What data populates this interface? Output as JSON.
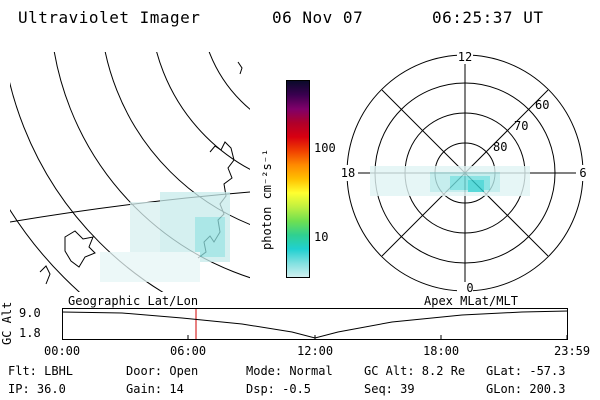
{
  "header": {
    "instrument": "Ultraviolet Imager",
    "date": "06 Nov 07",
    "time": "06:25:37 UT"
  },
  "colorbar": {
    "unit_label": "photon cm⁻²s⁻¹",
    "ticks": [
      "100",
      "10"
    ],
    "colors": [
      "#0a0a2a",
      "#3a0050",
      "#80006a",
      "#b0002a",
      "#d80010",
      "#f04000",
      "#ff8a00",
      "#ffc000",
      "#ffff30",
      "#c0f040",
      "#70e050",
      "#30d090",
      "#20d0d0",
      "#80e0e0",
      "#d0f0f0"
    ]
  },
  "left_map": {
    "title": "Geographic Lat/Lon"
  },
  "right_map": {
    "title": "Apex MLat/MLT",
    "mlt_labels": {
      "top": "12",
      "right": "6",
      "bottom": "0",
      "left": "18"
    },
    "lat_labels": [
      "60",
      "70",
      "80"
    ]
  },
  "altitude_plot": {
    "ylabel": "GC Alt",
    "yticks": [
      "9.0",
      "1.8"
    ],
    "xticks": [
      "00:00",
      "06:00",
      "12:00",
      "18:00",
      "23:59"
    ],
    "current_time_marker": "06:25"
  },
  "info": {
    "flt": "Flt: LBHL",
    "ip": "IP: 36.0",
    "door": "Door: Open",
    "gain": "Gain: 14",
    "mode": "Mode: Normal",
    "dsp": "Dsp:    -0.5",
    "gc_alt": "GC Alt: 8.2 Re",
    "seq": "Seq: 39",
    "glat": "GLat: -57.3",
    "glon": "GLon: 200.3"
  }
}
